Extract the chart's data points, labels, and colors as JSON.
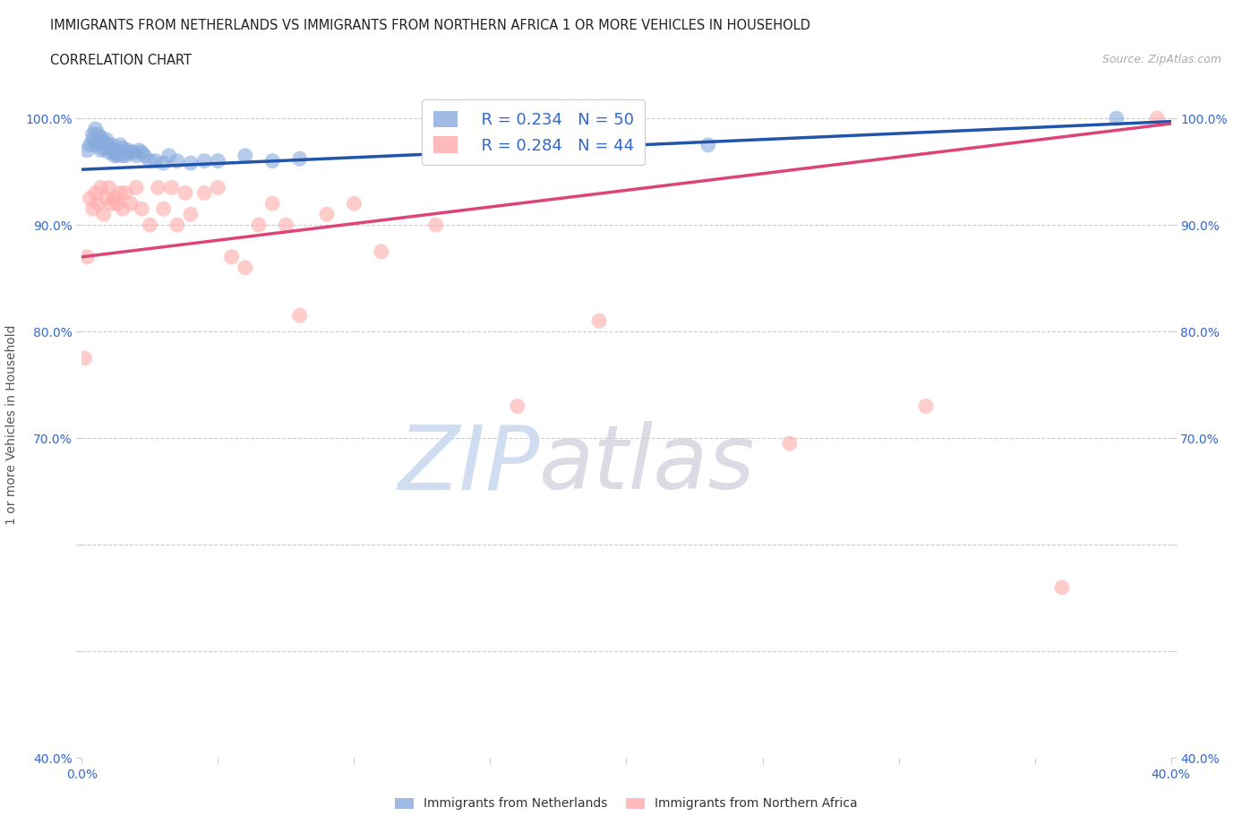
{
  "title_line1": "IMMIGRANTS FROM NETHERLANDS VS IMMIGRANTS FROM NORTHERN AFRICA 1 OR MORE VEHICLES IN HOUSEHOLD",
  "title_line2": "CORRELATION CHART",
  "source_text": "Source: ZipAtlas.com",
  "ylabel": "1 or more Vehicles in Household",
  "watermark_zip": "ZIP",
  "watermark_atlas": "atlas",
  "legend_label1": "Immigrants from Netherlands",
  "legend_label2": "Immigrants from Northern Africa",
  "R1": 0.234,
  "N1": 50,
  "R2": 0.284,
  "N2": 44,
  "color1": "#88aadd",
  "color2": "#ffaaaa",
  "trendline_color1": "#2255aa",
  "trendline_color2": "#dd4477",
  "xmin": 0.0,
  "xmax": 0.4,
  "ymin": 0.4,
  "ymax": 1.025,
  "x_ticks": [
    0.0,
    0.05,
    0.1,
    0.15,
    0.2,
    0.25,
    0.3,
    0.35,
    0.4
  ],
  "x_tick_labels": [
    "0.0%",
    "",
    "",
    "",
    "",
    "",
    "",
    "",
    "40.0%"
  ],
  "y_ticks": [
    0.4,
    0.5,
    0.6,
    0.7,
    0.8,
    0.9,
    1.0
  ],
  "y_tick_labels": [
    "40.0%",
    "",
    "",
    "70.0%",
    "80.0%",
    "90.0%",
    "100.0%"
  ],
  "netherlands_x": [
    0.002,
    0.003,
    0.004,
    0.004,
    0.005,
    0.005,
    0.006,
    0.006,
    0.007,
    0.007,
    0.008,
    0.008,
    0.009,
    0.009,
    0.01,
    0.01,
    0.011,
    0.011,
    0.012,
    0.012,
    0.013,
    0.013,
    0.014,
    0.014,
    0.015,
    0.015,
    0.016,
    0.016,
    0.017,
    0.018,
    0.019,
    0.02,
    0.021,
    0.022,
    0.023,
    0.025,
    0.027,
    0.03,
    0.032,
    0.035,
    0.04,
    0.045,
    0.05,
    0.06,
    0.07,
    0.08,
    0.13,
    0.15,
    0.23,
    0.38
  ],
  "netherlands_y": [
    0.97,
    0.975,
    0.98,
    0.985,
    0.99,
    0.975,
    0.985,
    0.978,
    0.982,
    0.97,
    0.978,
    0.972,
    0.98,
    0.975,
    0.972,
    0.968,
    0.975,
    0.97,
    0.968,
    0.965,
    0.97,
    0.965,
    0.968,
    0.975,
    0.965,
    0.972,
    0.968,
    0.965,
    0.97,
    0.968,
    0.968,
    0.965,
    0.97,
    0.968,
    0.965,
    0.96,
    0.96,
    0.958,
    0.965,
    0.96,
    0.958,
    0.96,
    0.96,
    0.965,
    0.96,
    0.962,
    0.968,
    0.97,
    0.975,
    1.0
  ],
  "n_africa_x": [
    0.001,
    0.002,
    0.003,
    0.004,
    0.005,
    0.006,
    0.007,
    0.008,
    0.009,
    0.01,
    0.011,
    0.012,
    0.013,
    0.014,
    0.015,
    0.016,
    0.018,
    0.02,
    0.022,
    0.025,
    0.028,
    0.03,
    0.033,
    0.035,
    0.038,
    0.04,
    0.045,
    0.05,
    0.055,
    0.06,
    0.065,
    0.07,
    0.075,
    0.08,
    0.09,
    0.1,
    0.11,
    0.13,
    0.16,
    0.19,
    0.26,
    0.31,
    0.36,
    0.395
  ],
  "n_africa_y": [
    0.775,
    0.87,
    0.925,
    0.915,
    0.93,
    0.92,
    0.935,
    0.91,
    0.925,
    0.935,
    0.92,
    0.925,
    0.92,
    0.93,
    0.915,
    0.93,
    0.92,
    0.935,
    0.915,
    0.9,
    0.935,
    0.915,
    0.935,
    0.9,
    0.93,
    0.91,
    0.93,
    0.935,
    0.87,
    0.86,
    0.9,
    0.92,
    0.9,
    0.815,
    0.91,
    0.92,
    0.875,
    0.9,
    0.73,
    0.81,
    0.695,
    0.73,
    0.56,
    1.0
  ],
  "trendline_nl_x0": 0.0,
  "trendline_nl_y0": 0.952,
  "trendline_nl_x1": 0.4,
  "trendline_nl_y1": 0.997,
  "trendline_na_x0": 0.0,
  "trendline_na_y0": 0.87,
  "trendline_na_x1": 0.4,
  "trendline_na_y1": 0.995
}
